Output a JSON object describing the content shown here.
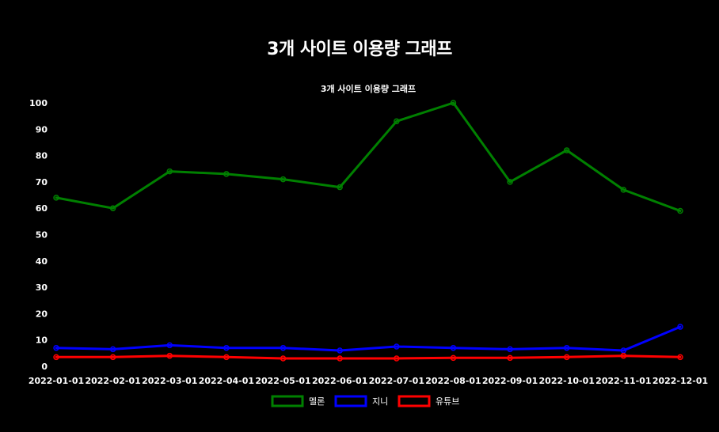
{
  "page": {
    "title": "3개 사이트 이용량 그래프"
  },
  "chart_data": {
    "type": "line",
    "title": "3개 사이트 이용량 그래프",
    "xlabel": "",
    "ylabel": "",
    "ylim": [
      0,
      100
    ],
    "yticks": [
      0,
      10,
      20,
      30,
      40,
      50,
      60,
      70,
      80,
      90,
      100
    ],
    "grid": false,
    "legend_position": "bottom",
    "categories": [
      "2022-01-01",
      "2022-02-01",
      "2022-03-01",
      "2022-04-01",
      "2022-05-01",
      "2022-06-01",
      "2022-07-01",
      "2022-08-01",
      "2022-09-01",
      "2022-10-01",
      "2022-11-01",
      "2022-12-01"
    ],
    "series": [
      {
        "name": "멜론",
        "color": "#008000",
        "values": [
          64,
          60,
          74,
          73,
          71,
          68,
          93,
          100,
          70,
          82,
          67,
          59
        ]
      },
      {
        "name": "지니",
        "color": "#0000ff",
        "values": [
          7,
          6.5,
          8,
          7,
          7,
          6,
          7.5,
          7,
          6.5,
          7,
          6,
          15
        ]
      },
      {
        "name": "유튜브",
        "color": "#ff0000",
        "values": [
          3.5,
          3.5,
          4,
          3.5,
          3,
          3,
          3,
          3.2,
          3.2,
          3.5,
          4,
          3.5
        ]
      }
    ]
  }
}
